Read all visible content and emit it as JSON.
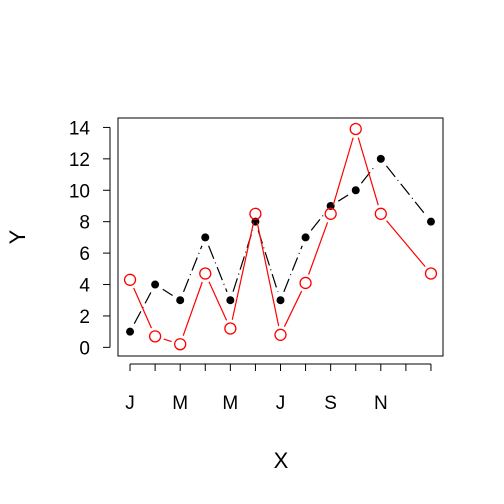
{
  "chart_data": {
    "type": "line",
    "title": "",
    "xlabel": "X",
    "ylabel": "Y",
    "x": [
      1,
      2,
      3,
      4,
      5,
      6,
      7,
      8,
      9,
      10,
      11,
      12,
      13
    ],
    "x_tick_positions": [
      1,
      2,
      3,
      4,
      5,
      6,
      7,
      8,
      9,
      10,
      11,
      12,
      13
    ],
    "x_tick_labels": [
      "J",
      "",
      "M",
      "",
      "M",
      "",
      "J",
      "",
      "S",
      "",
      "N",
      "",
      ""
    ],
    "y_ticks": [
      0,
      2,
      4,
      6,
      8,
      10,
      12,
      14
    ],
    "xlim": [
      0.52,
      13.48
    ],
    "ylim": [
      -0.55,
      14.6
    ],
    "grid": false,
    "series": [
      {
        "values": [
          1,
          4,
          3,
          7,
          3,
          8,
          3,
          7,
          9,
          10,
          12,
          8
        ],
        "x": [
          1,
          2,
          3,
          4,
          5,
          6,
          7,
          8,
          9,
          10,
          11,
          13
        ],
        "color": "#000000",
        "marker": "filled-circle",
        "line": "dash-dot"
      },
      {
        "values": [
          4.3,
          0.7,
          0.2,
          4.7,
          1.2,
          8.5,
          0.8,
          4.1,
          8.5,
          13.9,
          8.5,
          4.7
        ],
        "x": [
          1,
          2,
          3,
          4,
          5,
          6,
          7,
          8,
          9,
          10,
          11,
          13
        ],
        "color": "#ff0000",
        "marker": "open-circle",
        "line": "solid"
      }
    ]
  }
}
